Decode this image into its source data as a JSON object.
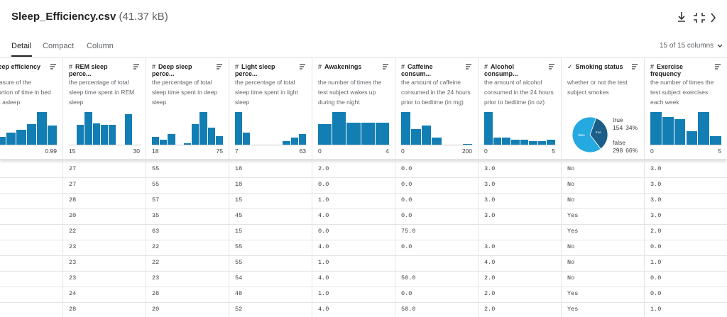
{
  "header": {
    "title": "Sleep_Efficiency.csv",
    "size": "(41.37 kB)"
  },
  "tabs": [
    "Detail",
    "Compact",
    "Column"
  ],
  "columns_count": "15 of 15 columns",
  "columns": [
    {
      "icon": "#",
      "name": "Sleep efficiency",
      "description": "a measure of the proportion of time in bed spent asleep",
      "hist": [
        10,
        15,
        22,
        28,
        38,
        60,
        35
      ],
      "min": null,
      "max": "0.99"
    },
    {
      "icon": "#",
      "name": "REM sleep perce...",
      "description": "the percentage of total sleep time spent in REM sleep",
      "hist": [
        0,
        55,
        90,
        58,
        55,
        55,
        0,
        85,
        0
      ],
      "min": "15",
      "max": "30"
    },
    {
      "icon": "#",
      "name": "Deep sleep perce...",
      "description": "the percentage of total sleep time spent in deep sleep",
      "hist": [
        22,
        15,
        30,
        0,
        5,
        60,
        95,
        50,
        25
      ],
      "min": "18",
      "max": "75"
    },
    {
      "icon": "#",
      "name": "Light sleep perce...",
      "description": "the percentage of total sleep time spent in light sleep",
      "hist": [
        95,
        35,
        0,
        0,
        0,
        0,
        10,
        20,
        30
      ],
      "min": "7",
      "max": "63"
    },
    {
      "icon": "#",
      "name": "Awakenings",
      "description": "the number of times the test subject wakes up during the night",
      "hist": [
        60,
        95,
        65,
        65,
        65
      ],
      "min": "0",
      "max": "4"
    },
    {
      "icon": "#",
      "name": "Caffeine consum...",
      "description": "the amount of caffeine consumed in the 24 hours prior to bedtime (in mg)",
      "hist": [
        95,
        45,
        55,
        20,
        0,
        0,
        3
      ],
      "min": "0",
      "max": "200"
    },
    {
      "icon": "#",
      "name": "Alcohol consump...",
      "description": "the amount of alcohol consumed in the 24 hours prior to bedtime (in oz)",
      "hist": [
        95,
        20,
        20,
        15,
        15,
        10,
        10,
        15
      ],
      "min": "0",
      "max": "5"
    },
    {
      "icon": "✓",
      "name": "Smoking status",
      "description": "whether or not the test subject smokes",
      "pie": {
        "labels": [
          "true",
          "false"
        ],
        "counts": [
          154,
          298
        ],
        "percents": [
          "34%",
          "66%"
        ]
      }
    },
    {
      "icon": "#",
      "name": "Exercise frequency",
      "description": "the number of times the test subject exercises each week",
      "hist": [
        95,
        80,
        75,
        40,
        95,
        25
      ],
      "min": "0",
      "max": "5"
    }
  ],
  "rows": [
    [
      "27",
      "55",
      "18",
      "2.0",
      "0.0",
      "3.0",
      "No",
      "3.0"
    ],
    [
      "27",
      "55",
      "18",
      "0.0",
      "0.0",
      "3.0",
      "No",
      "3.0"
    ],
    [
      "28",
      "57",
      "15",
      "1.0",
      "0.0",
      "3.0",
      "No",
      "3.0"
    ],
    [
      "20",
      "35",
      "45",
      "4.0",
      "0.0",
      "3.0",
      "Yes",
      "3.0"
    ],
    [
      "22",
      "63",
      "15",
      "0.0",
      "75.0",
      null,
      "Yes",
      "2.0"
    ],
    [
      "23",
      "22",
      "55",
      "4.0",
      "0.0",
      "3.0",
      "No",
      "0.0"
    ],
    [
      "23",
      "22",
      "55",
      "1.0",
      null,
      "4.0",
      "No",
      "1.0"
    ],
    [
      "23",
      "23",
      "54",
      "4.0",
      "50.0",
      "2.0",
      "No",
      "0.0"
    ],
    [
      "24",
      "28",
      "48",
      "1.0",
      "0.0",
      "2.0",
      "Yes",
      "0.0"
    ],
    [
      "28",
      "20",
      "52",
      "4.0",
      "50.0",
      "2.0",
      "Yes",
      "1.0"
    ]
  ]
}
